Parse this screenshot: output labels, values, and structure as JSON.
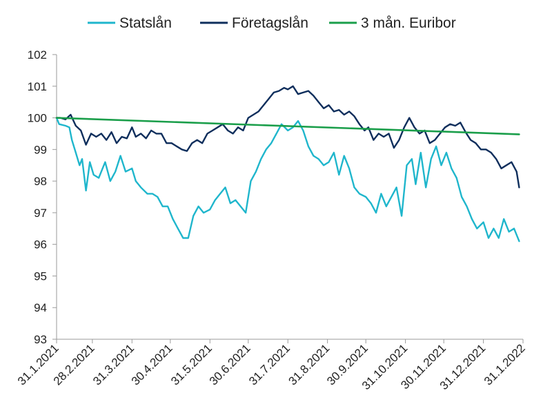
{
  "chart_data": {
    "type": "line",
    "title": "",
    "xlabel": "",
    "ylabel": "",
    "ylim": [
      93,
      102
    ],
    "yticks": [
      "93",
      "94",
      "95",
      "96",
      "97",
      "98",
      "99",
      "100",
      "101",
      "102"
    ],
    "xlim": [
      "2021-01-31",
      "2022-01-31"
    ],
    "xtick_labels": [
      "31.1.2021",
      "28.2.2021",
      "31.3.2021",
      "30.4.2021",
      "31.5.2021",
      "30.6.2021",
      "31.7.2021",
      "31.8.2021",
      "30.9.2021",
      "31.10.2021",
      "30.11.2021",
      "31.12.2021",
      "31.1.2022"
    ],
    "xtick_dates": [
      "2021-01-31",
      "2021-02-28",
      "2021-03-31",
      "2021-04-30",
      "2021-05-31",
      "2021-06-30",
      "2021-07-31",
      "2021-08-31",
      "2021-09-30",
      "2021-10-31",
      "2021-11-30",
      "2021-12-31",
      "2022-01-31"
    ],
    "legend_position": "top",
    "grid": false,
    "series": [
      {
        "name": "Statslån",
        "color": "#1FB6CC",
        "points": [
          [
            "2021-01-31",
            100.0
          ],
          [
            "2021-02-02",
            99.8
          ],
          [
            "2021-02-07",
            99.75
          ],
          [
            "2021-02-10",
            99.7
          ],
          [
            "2021-02-12",
            99.3
          ],
          [
            "2021-02-15",
            98.9
          ],
          [
            "2021-02-18",
            98.5
          ],
          [
            "2021-02-20",
            98.7
          ],
          [
            "2021-02-23",
            97.7
          ],
          [
            "2021-02-26",
            98.6
          ],
          [
            "2021-03-01",
            98.2
          ],
          [
            "2021-03-05",
            98.1
          ],
          [
            "2021-03-10",
            98.6
          ],
          [
            "2021-03-14",
            98.0
          ],
          [
            "2021-03-18",
            98.3
          ],
          [
            "2021-03-22",
            98.8
          ],
          [
            "2021-03-26",
            98.3
          ],
          [
            "2021-03-31",
            98.4
          ],
          [
            "2021-04-03",
            98.0
          ],
          [
            "2021-04-07",
            97.8
          ],
          [
            "2021-04-12",
            97.6
          ],
          [
            "2021-04-16",
            97.6
          ],
          [
            "2021-04-20",
            97.5
          ],
          [
            "2021-04-24",
            97.2
          ],
          [
            "2021-04-28",
            97.2
          ],
          [
            "2021-05-02",
            96.8
          ],
          [
            "2021-05-06",
            96.5
          ],
          [
            "2021-05-10",
            96.2
          ],
          [
            "2021-05-14",
            96.2
          ],
          [
            "2021-05-18",
            96.9
          ],
          [
            "2021-05-22",
            97.2
          ],
          [
            "2021-05-26",
            97.0
          ],
          [
            "2021-05-31",
            97.1
          ],
          [
            "2021-06-04",
            97.4
          ],
          [
            "2021-06-08",
            97.6
          ],
          [
            "2021-06-12",
            97.8
          ],
          [
            "2021-06-16",
            97.3
          ],
          [
            "2021-06-20",
            97.4
          ],
          [
            "2021-06-24",
            97.2
          ],
          [
            "2021-06-28",
            97.0
          ],
          [
            "2021-07-02",
            98.0
          ],
          [
            "2021-07-06",
            98.3
          ],
          [
            "2021-07-10",
            98.7
          ],
          [
            "2021-07-14",
            99.0
          ],
          [
            "2021-07-18",
            99.2
          ],
          [
            "2021-07-22",
            99.5
          ],
          [
            "2021-07-26",
            99.8
          ],
          [
            "2021-07-31",
            99.6
          ],
          [
            "2021-08-04",
            99.7
          ],
          [
            "2021-08-08",
            99.9
          ],
          [
            "2021-08-12",
            99.6
          ],
          [
            "2021-08-16",
            99.1
          ],
          [
            "2021-08-20",
            98.8
          ],
          [
            "2021-08-24",
            98.7
          ],
          [
            "2021-08-28",
            98.5
          ],
          [
            "2021-09-01",
            98.6
          ],
          [
            "2021-09-05",
            98.9
          ],
          [
            "2021-09-09",
            98.2
          ],
          [
            "2021-09-13",
            98.8
          ],
          [
            "2021-09-17",
            98.4
          ],
          [
            "2021-09-21",
            97.8
          ],
          [
            "2021-09-25",
            97.6
          ],
          [
            "2021-09-30",
            97.5
          ],
          [
            "2021-10-04",
            97.3
          ],
          [
            "2021-10-08",
            97.0
          ],
          [
            "2021-10-12",
            97.6
          ],
          [
            "2021-10-16",
            97.2
          ],
          [
            "2021-10-20",
            97.5
          ],
          [
            "2021-10-24",
            97.8
          ],
          [
            "2021-10-28",
            96.9
          ],
          [
            "2021-11-01",
            98.5
          ],
          [
            "2021-11-05",
            98.7
          ],
          [
            "2021-11-08",
            97.9
          ],
          [
            "2021-11-12",
            98.9
          ],
          [
            "2021-11-16",
            97.8
          ],
          [
            "2021-11-20",
            98.7
          ],
          [
            "2021-11-24",
            99.1
          ],
          [
            "2021-11-28",
            98.5
          ],
          [
            "2021-12-02",
            98.9
          ],
          [
            "2021-12-06",
            98.4
          ],
          [
            "2021-12-10",
            98.1
          ],
          [
            "2021-12-14",
            97.5
          ],
          [
            "2021-12-18",
            97.2
          ],
          [
            "2021-12-22",
            96.8
          ],
          [
            "2021-12-26",
            96.5
          ],
          [
            "2021-12-31",
            96.7
          ],
          [
            "2022-01-04",
            96.2
          ],
          [
            "2022-01-08",
            96.5
          ],
          [
            "2022-01-12",
            96.2
          ],
          [
            "2022-01-16",
            96.8
          ],
          [
            "2022-01-20",
            96.4
          ],
          [
            "2022-01-24",
            96.5
          ],
          [
            "2022-01-28",
            96.1
          ]
        ]
      },
      {
        "name": "Företagslån",
        "color": "#0E2E5C",
        "points": [
          [
            "2021-01-31",
            100.0
          ],
          [
            "2021-02-03",
            100.0
          ],
          [
            "2021-02-07",
            99.95
          ],
          [
            "2021-02-11",
            100.1
          ],
          [
            "2021-02-15",
            99.75
          ],
          [
            "2021-02-19",
            99.6
          ],
          [
            "2021-02-23",
            99.15
          ],
          [
            "2021-02-27",
            99.5
          ],
          [
            "2021-03-03",
            99.4
          ],
          [
            "2021-03-07",
            99.5
          ],
          [
            "2021-03-11",
            99.3
          ],
          [
            "2021-03-15",
            99.55
          ],
          [
            "2021-03-19",
            99.2
          ],
          [
            "2021-03-23",
            99.4
          ],
          [
            "2021-03-27",
            99.35
          ],
          [
            "2021-03-31",
            99.7
          ],
          [
            "2021-04-03",
            99.4
          ],
          [
            "2021-04-07",
            99.5
          ],
          [
            "2021-04-11",
            99.35
          ],
          [
            "2021-04-15",
            99.6
          ],
          [
            "2021-04-19",
            99.5
          ],
          [
            "2021-04-23",
            99.5
          ],
          [
            "2021-04-27",
            99.2
          ],
          [
            "2021-05-01",
            99.2
          ],
          [
            "2021-05-05",
            99.1
          ],
          [
            "2021-05-09",
            99.0
          ],
          [
            "2021-05-13",
            98.95
          ],
          [
            "2021-05-17",
            99.2
          ],
          [
            "2021-05-21",
            99.3
          ],
          [
            "2021-05-25",
            99.2
          ],
          [
            "2021-05-29",
            99.5
          ],
          [
            "2021-06-02",
            99.6
          ],
          [
            "2021-06-06",
            99.7
          ],
          [
            "2021-06-10",
            99.8
          ],
          [
            "2021-06-14",
            99.6
          ],
          [
            "2021-06-18",
            99.5
          ],
          [
            "2021-06-22",
            99.7
          ],
          [
            "2021-06-26",
            99.6
          ],
          [
            "2021-06-30",
            100.0
          ],
          [
            "2021-07-04",
            100.1
          ],
          [
            "2021-07-08",
            100.2
          ],
          [
            "2021-07-12",
            100.4
          ],
          [
            "2021-07-16",
            100.6
          ],
          [
            "2021-07-20",
            100.8
          ],
          [
            "2021-07-24",
            100.85
          ],
          [
            "2021-07-28",
            100.95
          ],
          [
            "2021-07-31",
            100.9
          ],
          [
            "2021-08-04",
            101.0
          ],
          [
            "2021-08-08",
            100.75
          ],
          [
            "2021-08-12",
            100.8
          ],
          [
            "2021-08-16",
            100.85
          ],
          [
            "2021-08-20",
            100.7
          ],
          [
            "2021-08-24",
            100.5
          ],
          [
            "2021-08-28",
            100.3
          ],
          [
            "2021-09-01",
            100.4
          ],
          [
            "2021-09-05",
            100.2
          ],
          [
            "2021-09-09",
            100.25
          ],
          [
            "2021-09-13",
            100.1
          ],
          [
            "2021-09-17",
            100.2
          ],
          [
            "2021-09-21",
            100.05
          ],
          [
            "2021-09-25",
            99.8
          ],
          [
            "2021-09-29",
            99.6
          ],
          [
            "2021-10-02",
            99.7
          ],
          [
            "2021-10-06",
            99.3
          ],
          [
            "2021-10-10",
            99.5
          ],
          [
            "2021-10-14",
            99.4
          ],
          [
            "2021-10-18",
            99.5
          ],
          [
            "2021-10-22",
            99.05
          ],
          [
            "2021-10-26",
            99.3
          ],
          [
            "2021-10-30",
            99.7
          ],
          [
            "2021-11-03",
            100.0
          ],
          [
            "2021-11-07",
            99.7
          ],
          [
            "2021-11-11",
            99.5
          ],
          [
            "2021-11-15",
            99.6
          ],
          [
            "2021-11-19",
            99.2
          ],
          [
            "2021-11-23",
            99.3
          ],
          [
            "2021-11-27",
            99.5
          ],
          [
            "2021-12-01",
            99.7
          ],
          [
            "2021-12-05",
            99.8
          ],
          [
            "2021-12-09",
            99.75
          ],
          [
            "2021-12-13",
            99.85
          ],
          [
            "2021-12-17",
            99.55
          ],
          [
            "2021-12-21",
            99.3
          ],
          [
            "2021-12-25",
            99.2
          ],
          [
            "2021-12-29",
            99.0
          ],
          [
            "2022-01-02",
            99.0
          ],
          [
            "2022-01-06",
            98.9
          ],
          [
            "2022-01-10",
            98.7
          ],
          [
            "2022-01-14",
            98.4
          ],
          [
            "2022-01-18",
            98.5
          ],
          [
            "2022-01-22",
            98.6
          ],
          [
            "2022-01-26",
            98.3
          ],
          [
            "2022-01-28",
            97.8
          ]
        ]
      },
      {
        "name": "3 mån. Euribor",
        "color": "#1A9E4A",
        "points": [
          [
            "2021-01-31",
            100.0
          ],
          [
            "2022-01-28",
            99.48
          ]
        ]
      }
    ]
  }
}
